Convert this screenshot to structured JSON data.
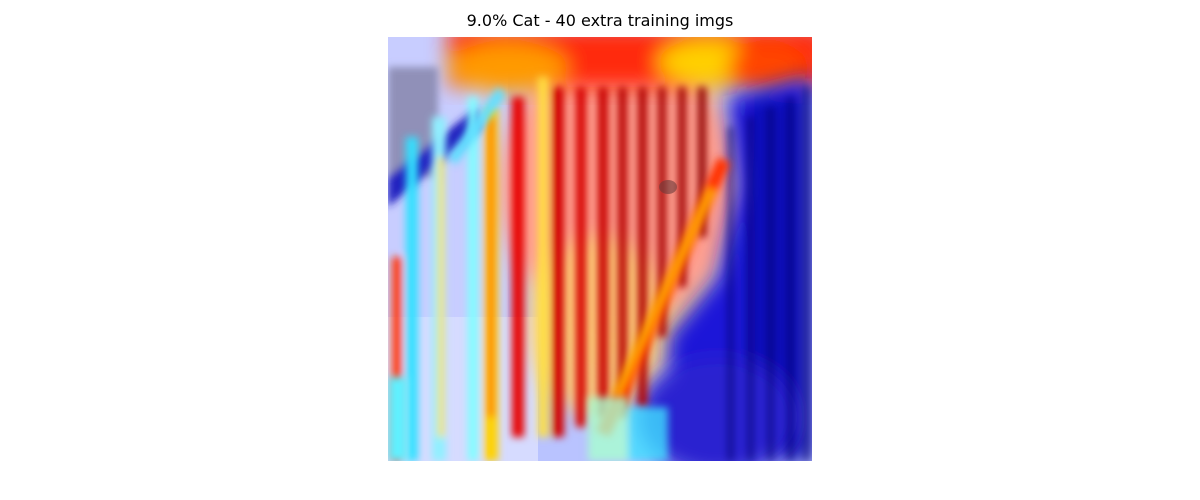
{
  "figure": {
    "title": "9.0% Cat - 40 extra training imgs"
  }
}
